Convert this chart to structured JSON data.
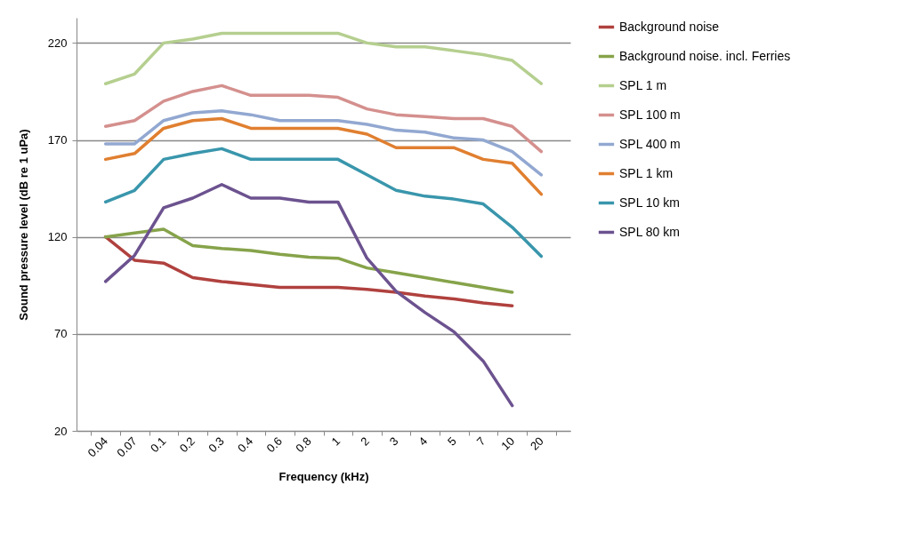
{
  "chart_data": {
    "type": "line",
    "xlabel": "Frequency (kHz)",
    "ylabel": "Sound pressure level (dB re 1 uPa)",
    "categories": [
      "0.04",
      "0.07",
      "0.1",
      "0.2",
      "0.3",
      "0.4",
      "0.6",
      "0.8",
      "1",
      "2",
      "3",
      "4",
      "5",
      "7",
      "10",
      "20"
    ],
    "ylim": [
      20,
      233
    ],
    "yticks": [
      20,
      70,
      120,
      170,
      220
    ],
    "grid": "y",
    "legend": "right",
    "marker": "none",
    "line_style": "solid",
    "series": [
      {
        "name": "Background noise",
        "color": "#b0413e",
        "values": [
          120,
          108,
          106.5,
          99,
          97,
          95.5,
          94,
          94,
          94,
          93,
          91.5,
          89.5,
          88,
          86,
          84.5,
          null
        ]
      },
      {
        "name": "Background noise. incl. Ferries",
        "color": "#86a34a",
        "values": [
          120,
          122,
          124,
          115.5,
          114,
          113,
          111,
          109.5,
          109,
          104,
          101.5,
          99,
          96.5,
          94,
          91.5,
          null
        ]
      },
      {
        "name": "SPL 1 m",
        "color": "#b5cf8f",
        "values": [
          199,
          204,
          220,
          222,
          225,
          225,
          225,
          225,
          225,
          220,
          218,
          218,
          216,
          214,
          211,
          199
        ]
      },
      {
        "name": "SPL 100 m",
        "color": "#d4908e",
        "values": [
          177,
          180,
          190,
          195,
          198,
          193,
          193,
          193,
          192,
          186,
          183,
          182,
          181,
          181,
          177,
          164
        ]
      },
      {
        "name": "SPL 400 m",
        "color": "#92a8d1",
        "values": [
          168,
          168,
          180,
          184,
          185,
          183,
          180,
          180,
          180,
          178,
          175,
          174,
          171,
          170,
          164,
          152
        ]
      },
      {
        "name": "SPL 1 km",
        "color": "#e07f30",
        "values": [
          160,
          163,
          176,
          180,
          181,
          176,
          176,
          176,
          176,
          173,
          166,
          166,
          166,
          160,
          158,
          142
        ]
      },
      {
        "name": "SPL 10 km",
        "color": "#3996ac",
        "values": [
          138,
          144,
          160,
          163,
          165.5,
          160,
          160,
          160,
          160,
          152,
          144,
          141,
          139.5,
          137,
          125,
          110
        ]
      },
      {
        "name": "SPL 80 km",
        "color": "#6c528f",
        "values": [
          97,
          110.5,
          135,
          140,
          147,
          140,
          140,
          138,
          138,
          109,
          92,
          81,
          71,
          56,
          33,
          null
        ]
      }
    ]
  }
}
